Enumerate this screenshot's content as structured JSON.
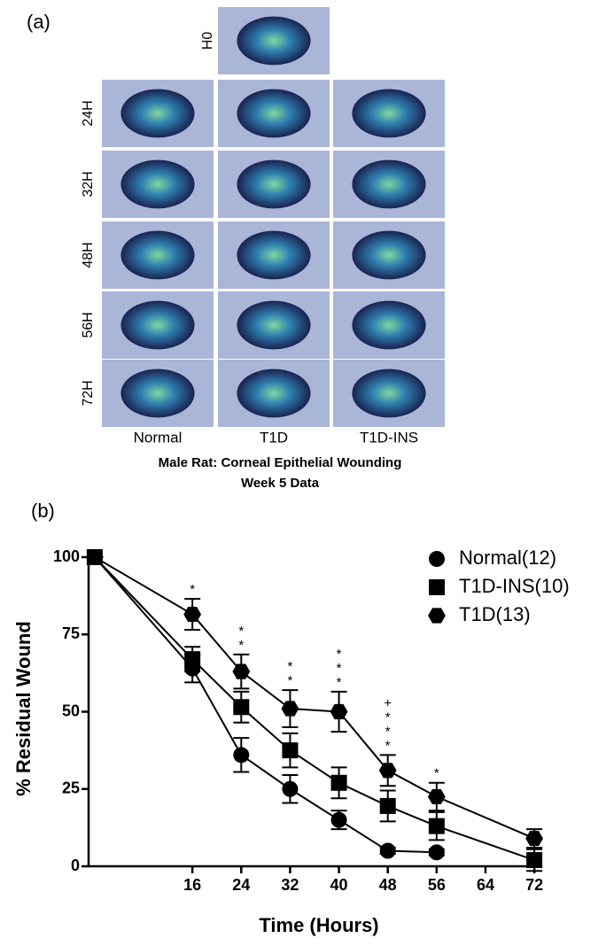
{
  "panel_a": {
    "label": "(a)",
    "rows": [
      "0H",
      "24H",
      "32H",
      "48H",
      "56H",
      "72H"
    ],
    "columns": [
      "Normal",
      "T1D",
      "T1D-INS"
    ],
    "caption": [
      "Male Rat: Corneal Epithelial Wounding",
      "Week 5 Data"
    ]
  },
  "chart_data": {
    "type": "line",
    "label": "(b)",
    "x_label": "Time (Hours)",
    "y_label": "% Residual Wound",
    "x": [
      0,
      16,
      24,
      32,
      40,
      48,
      56,
      72
    ],
    "series": [
      {
        "name": "Normal(12)",
        "color": "#000000",
        "marker": "circle",
        "values": [
          100,
          64,
          36,
          25,
          15,
          5,
          4.5,
          null
        ],
        "errors": [
          0,
          4.5,
          5.5,
          4.5,
          3,
          1,
          1,
          null
        ]
      },
      {
        "name": "T1D-INS(10)",
        "color": "#000000",
        "marker": "square",
        "values": [
          100,
          67,
          51.5,
          37.5,
          27,
          19.5,
          13,
          2
        ],
        "errors": [
          0,
          4,
          5,
          5.5,
          5,
          5,
          4.5,
          3.5
        ]
      },
      {
        "name": "T1D(13)",
        "color": "#000000",
        "marker": "hexagon",
        "values": [
          100,
          81.5,
          63,
          51,
          50,
          31,
          22.5,
          9
        ],
        "errors": [
          0,
          5,
          5.5,
          6,
          6.5,
          5,
          4.5,
          3
        ]
      }
    ],
    "annotations": [
      {
        "x": 16,
        "marks": [
          "*"
        ]
      },
      {
        "x": 24,
        "marks": [
          "*",
          "*"
        ]
      },
      {
        "x": 32,
        "marks": [
          "*",
          "*"
        ]
      },
      {
        "x": 40,
        "marks": [
          "*",
          "*",
          "*"
        ]
      },
      {
        "x": 48,
        "marks": [
          "+",
          "*",
          "*",
          "*"
        ]
      },
      {
        "x": 56,
        "marks": [
          "*"
        ]
      }
    ],
    "xlim": [
      -1,
      73
    ],
    "ylim": [
      0,
      100
    ],
    "xticks": [
      16,
      24,
      32,
      40,
      48,
      56,
      64,
      72
    ],
    "yticks": [
      0,
      25,
      50,
      75,
      100
    ],
    "legend": "top-right"
  }
}
